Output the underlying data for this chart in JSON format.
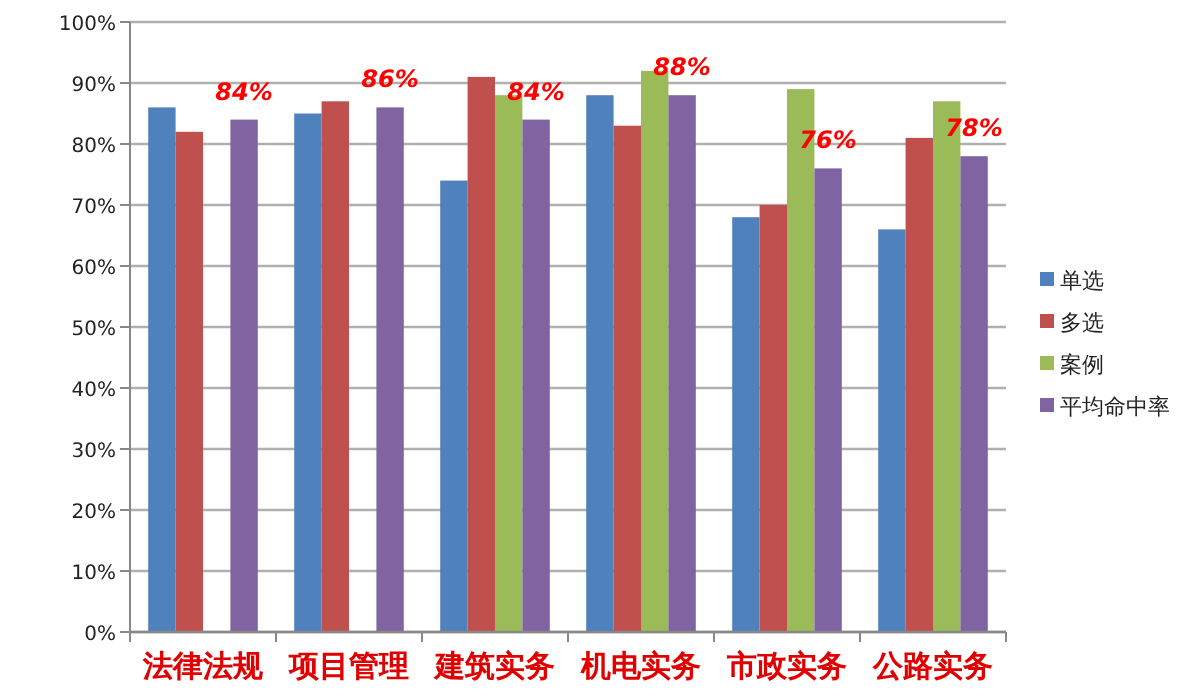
{
  "chart_data": {
    "type": "bar",
    "categories": [
      "法律法规",
      "项目管理",
      "建筑实务",
      "机电实务",
      "市政实务",
      "公路实务"
    ],
    "series": [
      {
        "name": "单选",
        "color": "#4f81bd",
        "values": [
          86,
          85,
          74,
          88,
          68,
          66
        ]
      },
      {
        "name": "多选",
        "color": "#c0504d",
        "values": [
          82,
          87,
          91,
          83,
          70,
          81
        ]
      },
      {
        "name": "案例",
        "color": "#9bbb59",
        "values": [
          null,
          null,
          88,
          92,
          89,
          87
        ]
      },
      {
        "name": "平均命中率",
        "color": "#8064a2",
        "values": [
          84,
          86,
          84,
          88,
          76,
          78
        ],
        "value_labels": [
          "84%",
          "86%",
          "84%",
          "88%",
          "76%",
          "78%"
        ]
      }
    ],
    "ylim": [
      0,
      100
    ],
    "yticks": [
      {
        "value": 0,
        "label": "0%"
      },
      {
        "value": 10,
        "label": "10%"
      },
      {
        "value": 20,
        "label": "20%"
      },
      {
        "value": 30,
        "label": "30%"
      },
      {
        "value": 40,
        "label": "40%"
      },
      {
        "value": 50,
        "label": "50%"
      },
      {
        "value": 60,
        "label": "60%"
      },
      {
        "value": 70,
        "label": "70%"
      },
      {
        "value": 80,
        "label": "80%"
      },
      {
        "value": 90,
        "label": "90%"
      },
      {
        "value": 100,
        "label": "100%"
      }
    ],
    "grid": "y",
    "legend": "right"
  }
}
